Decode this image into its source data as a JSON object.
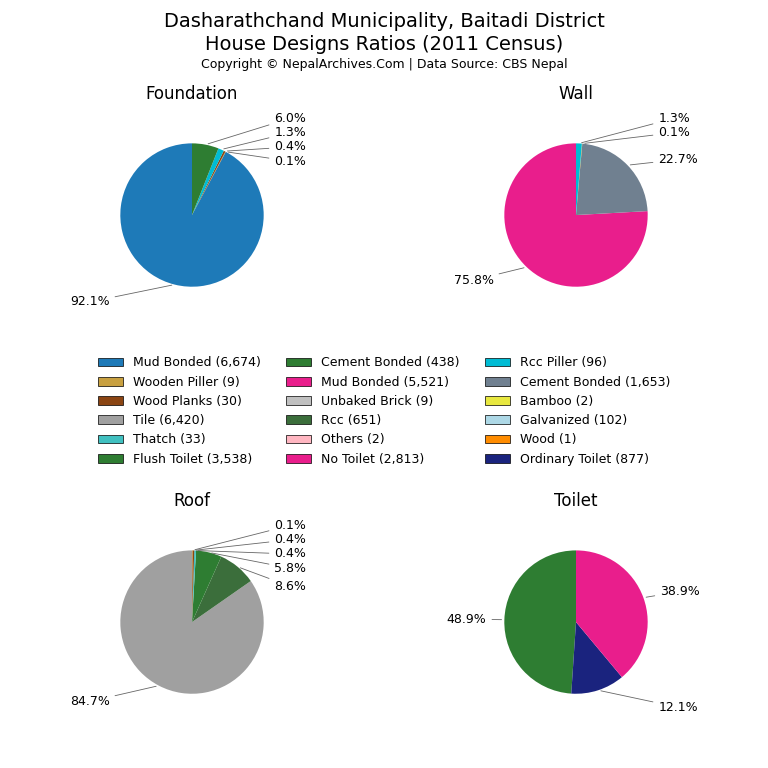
{
  "title": "Dasharathchand Municipality, Baitadi District",
  "subtitle": "House Designs Ratios (2011 Census)",
  "annotations": [
    "Copyright © NepalArchives.Com | Data Source: CBS Nepal"
  ],
  "legend": "center",
  "series": [
    {
      "name": "Mud Bonded (6,674)",
      "color": "#1e7ab8"
    },
    {
      "name": "Wooden Piller (9)",
      "color": "#c8a040"
    },
    {
      "name": "Wood Planks (30)",
      "color": "#8b4513"
    },
    {
      "name": "Tile (6,420)",
      "color": "#a0a0a0"
    },
    {
      "name": "Thatch (33)",
      "color": "#40c0c0"
    },
    {
      "name": "Flush Toilet (3,538)",
      "color": "#2e7d32"
    },
    {
      "name": "Cement Bonded (438)",
      "color": "#2e7d32"
    },
    {
      "name": "Mud Bonded (5,521)",
      "color": "#e91e8c"
    },
    {
      "name": "Unbaked Brick (9)",
      "color": "#c0c0c0"
    },
    {
      "name": "Rcc (651)",
      "color": "#3b6e3b"
    },
    {
      "name": "Others (2)",
      "color": "#ffb6c1"
    },
    {
      "name": "No Toilet (2,813)",
      "color": "#e91e8c"
    },
    {
      "name": "Rcc Piller (96)",
      "color": "#00bcd4"
    },
    {
      "name": "Cement Bonded (1,653)",
      "color": "#708090"
    },
    {
      "name": "Bamboo (2)",
      "color": "#e8e840"
    },
    {
      "name": "Galvanized (102)",
      "color": "#add8e6"
    },
    {
      "name": "Wood (1)",
      "color": "#ff8c00"
    },
    {
      "name": "Ordinary Toilet (877)",
      "color": "#1a237e"
    }
  ],
  "chart_data": [
    {
      "type": "pie",
      "title": "Foundation",
      "values": [
        92.1,
        0.1,
        0.4,
        1.3,
        6.0
      ],
      "value_labels": [
        "92.1%",
        "0.1%",
        "0.4%",
        "1.3%",
        "6.0%"
      ],
      "colors": [
        "#1e7ab8",
        "#c8a040",
        "#8b4513",
        "#00bcd4",
        "#2e7d32"
      ],
      "data_labels": true
    },
    {
      "type": "pie",
      "title": "Wall",
      "values": [
        75.8,
        22.7,
        0.1,
        1.3,
        0.0
      ],
      "value_labels": [
        "75.8%",
        "22.7%",
        "0.1%",
        "1.3%",
        null
      ],
      "colors": [
        "#e91e8c",
        "#708090",
        "#c8a040",
        "#00bcd4",
        "#ffb6c1"
      ],
      "data_labels": true
    },
    {
      "type": "pie",
      "title": "Roof",
      "values": [
        84.7,
        8.6,
        5.8,
        0.4,
        0.4,
        0.1
      ],
      "value_labels": [
        "84.7%",
        "8.6%",
        "5.8%",
        "0.4%",
        "0.4%",
        "0.1%"
      ],
      "colors": [
        "#a0a0a0",
        "#3b6e3b",
        "#2e7d32",
        "#40c0c0",
        "#8b4513",
        "#c8a040"
      ],
      "data_labels": true
    },
    {
      "type": "pie",
      "title": "Toilet",
      "values": [
        48.9,
        12.1,
        38.9,
        0.0
      ],
      "value_labels": [
        "48.9%",
        "12.1%",
        "38.9%",
        null
      ],
      "colors": [
        "#2e7d32",
        "#1a237e",
        "#e91e8c",
        "#ffd700"
      ],
      "data_labels": true
    }
  ]
}
